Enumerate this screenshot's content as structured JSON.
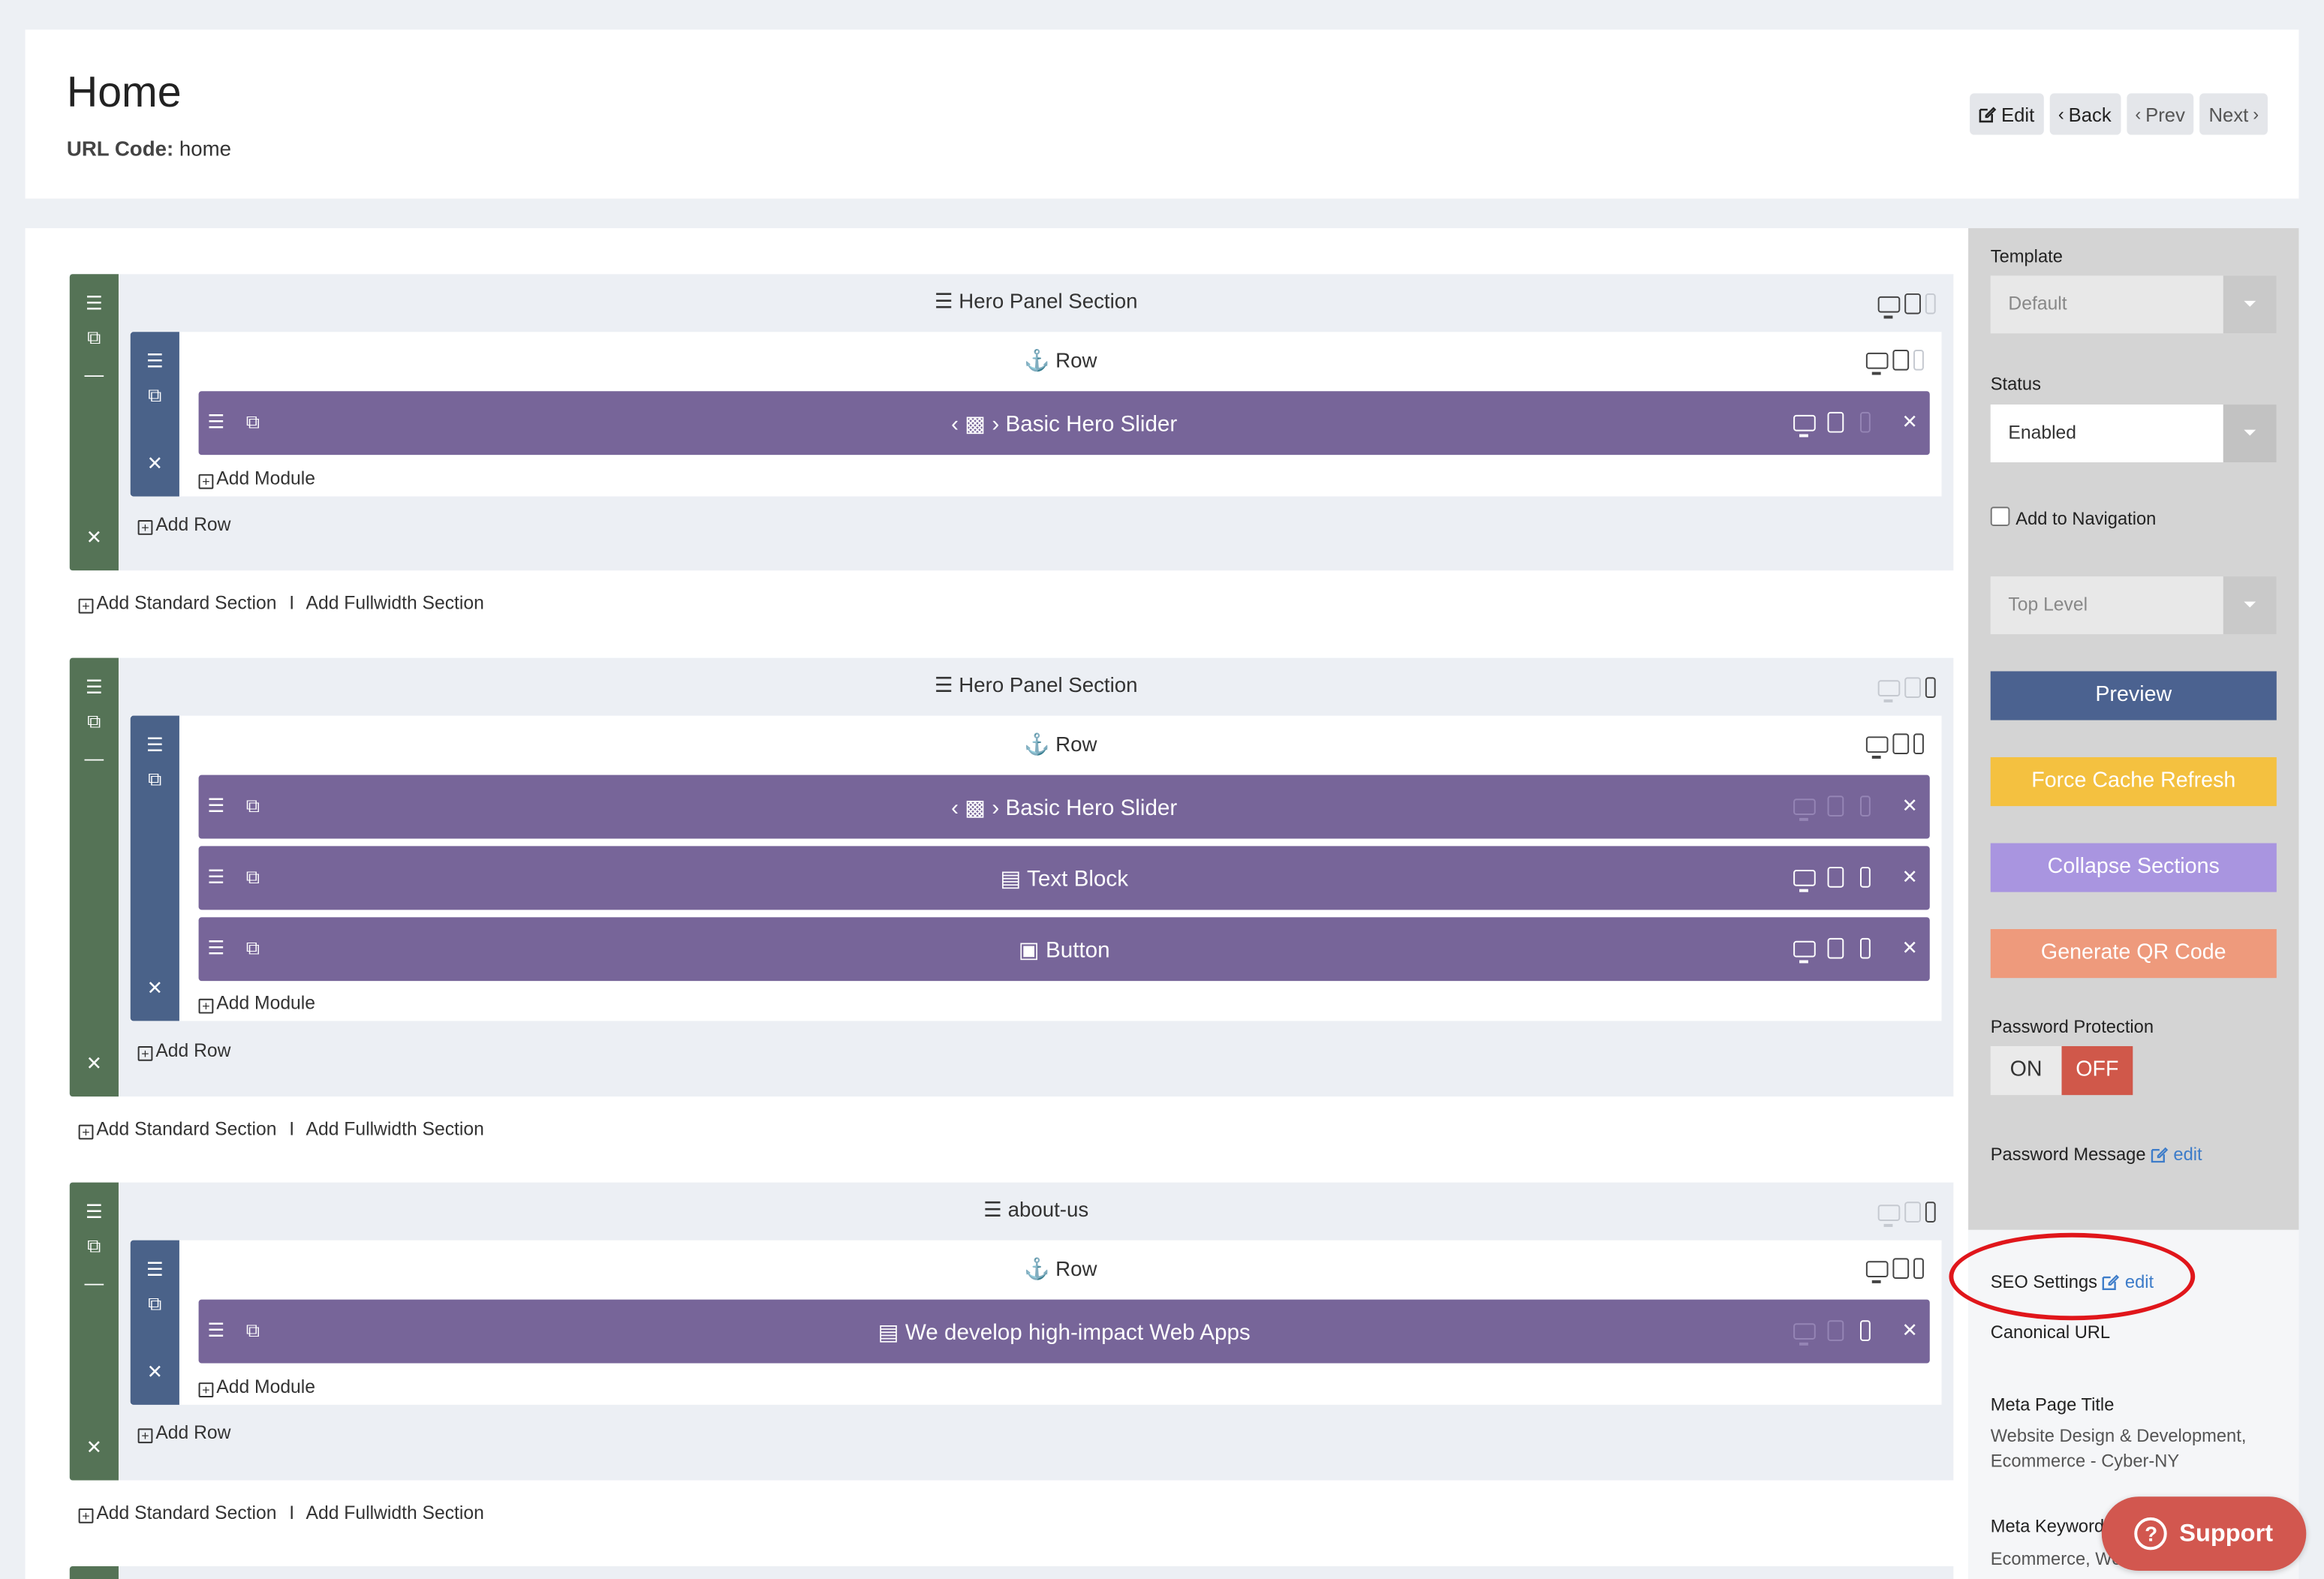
{
  "header": {
    "title": "Home",
    "url_code_label": "URL Code:",
    "url_code_value": "home",
    "buttons": {
      "edit": "Edit",
      "back": "Back",
      "prev": "Prev",
      "next": "Next"
    }
  },
  "builder": {
    "sections": [
      {
        "title": "Hero Panel Section",
        "devices": [
          "on",
          "on",
          "off"
        ],
        "row": {
          "title": "Row",
          "devices": [
            "on",
            "on",
            "off"
          ],
          "modules": [
            {
              "title": "Basic Hero Slider",
              "icon": "slider-icon",
              "devices": [
                "on",
                "on",
                "off"
              ]
            }
          ],
          "add_module": "Add Module"
        },
        "add_row": "Add Row"
      },
      {
        "title": "Hero Panel Section",
        "devices": [
          "off",
          "off",
          "on"
        ],
        "row": {
          "title": "Row",
          "devices": [
            "on",
            "on",
            "on"
          ],
          "modules": [
            {
              "title": "Basic Hero Slider",
              "icon": "slider-icon",
              "devices": [
                "off",
                "off",
                "off"
              ]
            },
            {
              "title": "Text Block",
              "icon": "text-block-icon",
              "devices": [
                "on",
                "on",
                "on"
              ]
            },
            {
              "title": "Button",
              "icon": "button-icon",
              "devices": [
                "on",
                "on",
                "on"
              ]
            }
          ],
          "add_module": "Add Module"
        },
        "add_row": "Add Row"
      },
      {
        "title": "about-us",
        "devices": [
          "off",
          "off",
          "on"
        ],
        "row": {
          "title": "Row",
          "devices": [
            "on",
            "on",
            "on"
          ],
          "modules": [
            {
              "title": "We develop high-impact Web Apps",
              "icon": "text-block-icon",
              "devices": [
                "off",
                "off",
                "on"
              ]
            }
          ],
          "add_module": "Add Module"
        },
        "add_row": "Add Row"
      }
    ],
    "add_standard_section": "Add Standard Section",
    "separator": "I",
    "add_fullwidth_section": "Add Fullwidth Section"
  },
  "sidebar": {
    "template_label": "Template",
    "template_value": "Default",
    "status_label": "Status",
    "status_value": "Enabled",
    "add_to_navigation": "Add to Navigation",
    "nav_level": "Top Level",
    "buttons": {
      "preview": "Preview",
      "force_cache_refresh": "Force Cache Refresh",
      "collapse_sections": "Collapse Sections",
      "generate_qr_code": "Generate QR Code"
    },
    "button_colors": {
      "preview": "#4b6290",
      "force_cache_refresh": "#f4c140",
      "collapse_sections": "#a995e0",
      "generate_qr_code": "#ee9a7c"
    },
    "password_protection_label": "Password Protection",
    "toggle_on": "ON",
    "toggle_off": "OFF",
    "password_message_label": "Password Message",
    "edit_label": "edit",
    "seo_settings_label": "SEO Settings",
    "canonical_url_label": "Canonical URL",
    "meta_page_title_label": "Meta Page Title",
    "meta_page_title_value": "Website Design & Development, Ecommerce - Cyber-NY",
    "meta_keywords_label": "Meta Keyword",
    "meta_keywords_value": "Ecommerce, We"
  },
  "support": {
    "label": "Support"
  }
}
